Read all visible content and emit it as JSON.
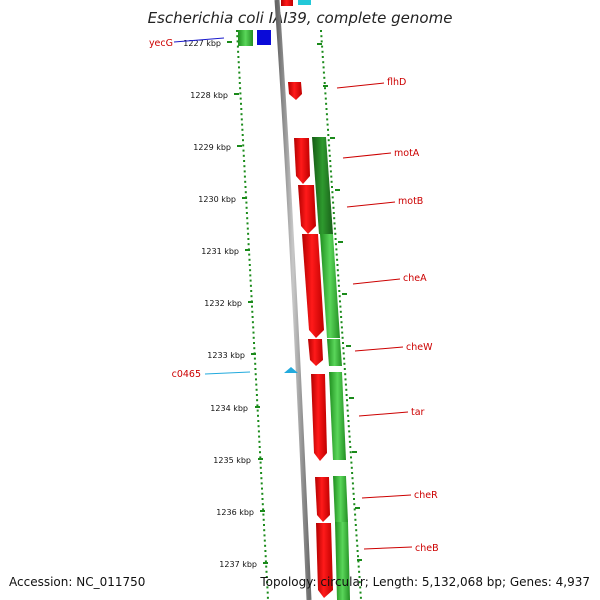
{
  "map": {
    "title": "Escherichia coli IAI39, complete genome",
    "accession": "Accession: NC_011750",
    "summary": "Topology: circular; Length: 5,132,068 bp; Genes: 4,937",
    "colors": {
      "backbone": "#8c8c8c",
      "gene_forward": "#ee0000",
      "gene_reverse": "#2aa02a",
      "gene_dark": "#1e7a1e",
      "tick": "#1a8a1a",
      "label_red": "#cc0000",
      "label_blue": "#1a1acc",
      "label_cyan": "#22aadd"
    },
    "ruler": [
      {
        "label": "1227 kbp"
      },
      {
        "label": "1228 kbp"
      },
      {
        "label": "1229 kbp"
      },
      {
        "label": "1230 kbp"
      },
      {
        "label": "1231 kbp"
      },
      {
        "label": "1232 kbp"
      },
      {
        "label": "1233 kbp"
      },
      {
        "label": "1234 kbp"
      },
      {
        "label": "1235 kbp"
      },
      {
        "label": "1236 kbp"
      },
      {
        "label": "1237 kbp"
      }
    ],
    "gene_labels": [
      {
        "name": "yecG",
        "color": "#1a1acc"
      },
      {
        "name": "flhD",
        "color": "#cc0000"
      },
      {
        "name": "motA",
        "color": "#cc0000"
      },
      {
        "name": "motB",
        "color": "#cc0000"
      },
      {
        "name": "cheA",
        "color": "#cc0000"
      },
      {
        "name": "cheW",
        "color": "#cc0000"
      },
      {
        "name": "c0465",
        "color": "#22aadd"
      },
      {
        "name": "tar",
        "color": "#cc0000"
      },
      {
        "name": "cheR",
        "color": "#cc0000"
      },
      {
        "name": "cheB",
        "color": "#cc0000"
      }
    ]
  }
}
